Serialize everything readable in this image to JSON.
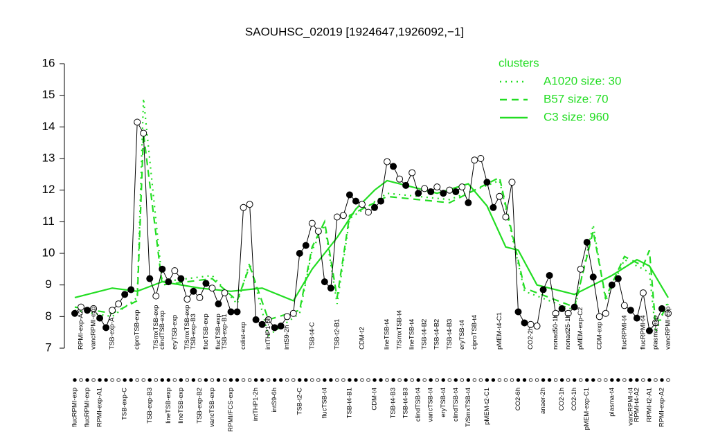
{
  "chart_data": {
    "type": "line",
    "title": "SAOUHSC_02019 [1924647,1926092,−1]",
    "ylim": [
      7,
      16
    ],
    "yticks": [
      7,
      8,
      9,
      10,
      11,
      12,
      13,
      14,
      15,
      16
    ],
    "values": [
      8.1,
      8.3,
      8.2,
      8.25,
      7.95,
      7.65,
      8.2,
      8.4,
      8.7,
      8.85,
      14.15,
      13.8,
      9.2,
      8.65,
      9.5,
      9.1,
      9.45,
      9.2,
      8.55,
      8.8,
      8.6,
      9.05,
      8.9,
      8.4,
      8.75,
      8.15,
      8.15,
      11.45,
      11.55,
      7.9,
      7.75,
      7.9,
      7.65,
      7.7,
      8.0,
      8.1,
      10.0,
      10.25,
      10.95,
      10.7,
      9.1,
      8.9,
      11.15,
      11.2,
      11.85,
      11.65,
      11.55,
      11.3,
      11.45,
      11.65,
      12.9,
      12.75,
      12.35,
      12.15,
      12.55,
      11.9,
      12.05,
      11.95,
      12.1,
      11.9,
      12.0,
      11.95,
      12.1,
      11.6,
      12.95,
      13.0,
      12.25,
      11.45,
      11.8,
      11.15,
      12.25,
      8.15,
      7.8,
      7.75,
      7.7,
      8.85,
      9.3,
      8.1,
      8.25,
      8.1,
      8.3,
      9.5,
      10.35,
      9.25,
      8.0,
      8.1,
      9.0,
      9.2,
      8.35,
      8.2,
      7.95,
      8.75,
      7.55,
      7.8,
      8.25,
      8.1
    ],
    "filled": [
      true,
      false,
      true,
      false,
      true,
      true,
      false,
      false,
      true,
      true,
      false,
      false,
      true,
      false,
      true,
      true,
      false,
      true,
      false,
      true,
      false,
      true,
      false,
      true,
      false,
      true,
      true,
      false,
      false,
      true,
      true,
      false,
      true,
      true,
      false,
      false,
      true,
      true,
      false,
      false,
      true,
      true,
      false,
      false,
      true,
      true,
      false,
      false,
      true,
      true,
      false,
      true,
      false,
      true,
      false,
      true,
      false,
      true,
      false,
      true,
      false,
      true,
      false,
      true,
      false,
      false,
      true,
      true,
      false,
      false,
      false,
      true,
      true,
      false,
      false,
      true,
      true,
      false,
      true,
      false,
      true,
      false,
      true,
      true,
      false,
      false,
      true,
      true,
      false,
      true,
      true,
      false,
      true,
      false,
      true,
      false
    ],
    "top_labels": [
      null,
      "RPMI-exp-A2",
      null,
      "vancRPMI-exp",
      null,
      null,
      "TSB-exp-A",
      null,
      null,
      null,
      "ciproTSB-exp",
      null,
      null,
      "T/SmxTSB-exp",
      "clindTSB-exp",
      null,
      "eryTSB-exp",
      null,
      "T/SmxTSB-exp",
      "TSB-exp-B3",
      null,
      "flucTSB-exp",
      null,
      "flucTSB-exp",
      "TSB-exp-B1",
      null,
      null,
      "colist-exp",
      null,
      null,
      null,
      "intTHP1-6h",
      null,
      null,
      "intS9-2h",
      null,
      null,
      null,
      "TSB-t4-C",
      null,
      null,
      null,
      "TSB-t2-B1",
      null,
      null,
      null,
      "CDM-t2",
      null,
      null,
      null,
      "lineTSB-t4",
      null,
      "T/SmxTSB-t4",
      null,
      "lineTSB-t4",
      null,
      "TSB-t4-B2",
      null,
      "TSB-t4-B2",
      null,
      "TSB-t4-B3",
      null,
      "eryTSB-t4",
      null,
      "ciproTSB-t4",
      null,
      null,
      null,
      "pMEM-t4-C1",
      null,
      null,
      null,
      null,
      "CO2-2h",
      null,
      null,
      null,
      "nonad50-1h",
      null,
      "nonad25-1h",
      null,
      "pMEM-exp-C2",
      null,
      null,
      "CDM-exp",
      null,
      null,
      null,
      "flucRPMI-t4",
      null,
      null,
      "flucRPMI-t4",
      null,
      "plasma-exp",
      null,
      "vancRPMI-exp"
    ],
    "bottom_labels": [
      "flucRPMI-exp",
      null,
      "flucRPMI-exp",
      null,
      "RPMI-exp-A1",
      null,
      null,
      null,
      "TSB-exp-C",
      null,
      null,
      null,
      "TSB-exp-B3",
      null,
      null,
      "lineTSB-exp",
      null,
      "lineTSB-exp",
      null,
      null,
      "TSB-exp-B2",
      null,
      "vancTSB-exp",
      null,
      null,
      "RPMI/FCS-exp",
      null,
      null,
      null,
      "intTHP1-2h",
      null,
      null,
      "intS9-6h",
      null,
      null,
      null,
      "TSB-t2-C",
      null,
      null,
      null,
      "flucTSB-t4",
      null,
      null,
      null,
      "TSB-t4-B1",
      null,
      null,
      null,
      "CDM-t4",
      null,
      null,
      "TSB-t4-B3",
      null,
      "TSB-t4-B3",
      null,
      "clindTSB-t4",
      null,
      "vancTSB-t4",
      null,
      "eryTSB-t4",
      null,
      "clindTSB-t4",
      null,
      "T/SmxTSB-t4",
      null,
      null,
      "pMEM-t2-C1",
      null,
      null,
      null,
      null,
      "CO2-6h",
      null,
      null,
      null,
      "anaer-2h",
      null,
      null,
      "CO2-1h",
      null,
      "CO2-1h",
      null,
      "pMEM-exp-C1",
      null,
      null,
      null,
      "plasma-t4",
      null,
      null,
      "vancRPMI-t4",
      "RPMI-t4-A2",
      null,
      "RPMI-t2-A1",
      null,
      "RPMI-exp-A2",
      null
    ],
    "legend_title": "clusters",
    "series": [
      {
        "name": "A1020 size: 30",
        "color": "#22dd22",
        "style": "dotted",
        "x": [
          0,
          6,
          10,
          11,
          14,
          22,
          26,
          28,
          31,
          36,
          38,
          40,
          42,
          44,
          50,
          60,
          68,
          72,
          80,
          83,
          85,
          88,
          92,
          93,
          95
        ],
        "values": [
          8.2,
          8.0,
          8.6,
          14.9,
          9.1,
          9.3,
          8.4,
          9.7,
          7.4,
          8.1,
          10.1,
          10.9,
          8.4,
          11.1,
          11.9,
          11.7,
          12.3,
          8.8,
          8.2,
          10.9,
          8.5,
          9.8,
          9.4,
          7.5,
          8.5
        ]
      },
      {
        "name": "B57 size: 70",
        "color": "#22dd22",
        "style": "dashed",
        "x": [
          0,
          6,
          10,
          11,
          14,
          22,
          26,
          28,
          31,
          36,
          38,
          40,
          42,
          44,
          50,
          60,
          68,
          72,
          80,
          83,
          85,
          88,
          91,
          92,
          93,
          95
        ],
        "values": [
          8.3,
          8.1,
          8.5,
          13.8,
          9.0,
          9.2,
          8.5,
          9.6,
          7.9,
          8.2,
          10.2,
          11.0,
          8.6,
          11.2,
          11.8,
          11.6,
          12.4,
          8.9,
          8.3,
          10.7,
          8.6,
          9.9,
          9.6,
          10.1,
          7.7,
          8.4
        ]
      },
      {
        "name": "C3 size: 960",
        "color": "#22dd22",
        "style": "solid",
        "x": [
          0,
          6,
          10,
          14,
          20,
          25,
          30,
          35,
          38,
          42,
          45,
          48,
          50,
          58,
          63,
          66,
          69,
          71,
          74,
          80,
          86,
          90,
          92,
          95
        ],
        "values": [
          8.6,
          8.9,
          8.8,
          9.1,
          8.9,
          8.8,
          8.9,
          8.5,
          9.5,
          10.5,
          11.4,
          12.0,
          12.3,
          11.9,
          12.2,
          11.5,
          10.2,
          10.1,
          9.0,
          8.7,
          9.3,
          9.8,
          9.6,
          8.6
        ]
      }
    ]
  }
}
